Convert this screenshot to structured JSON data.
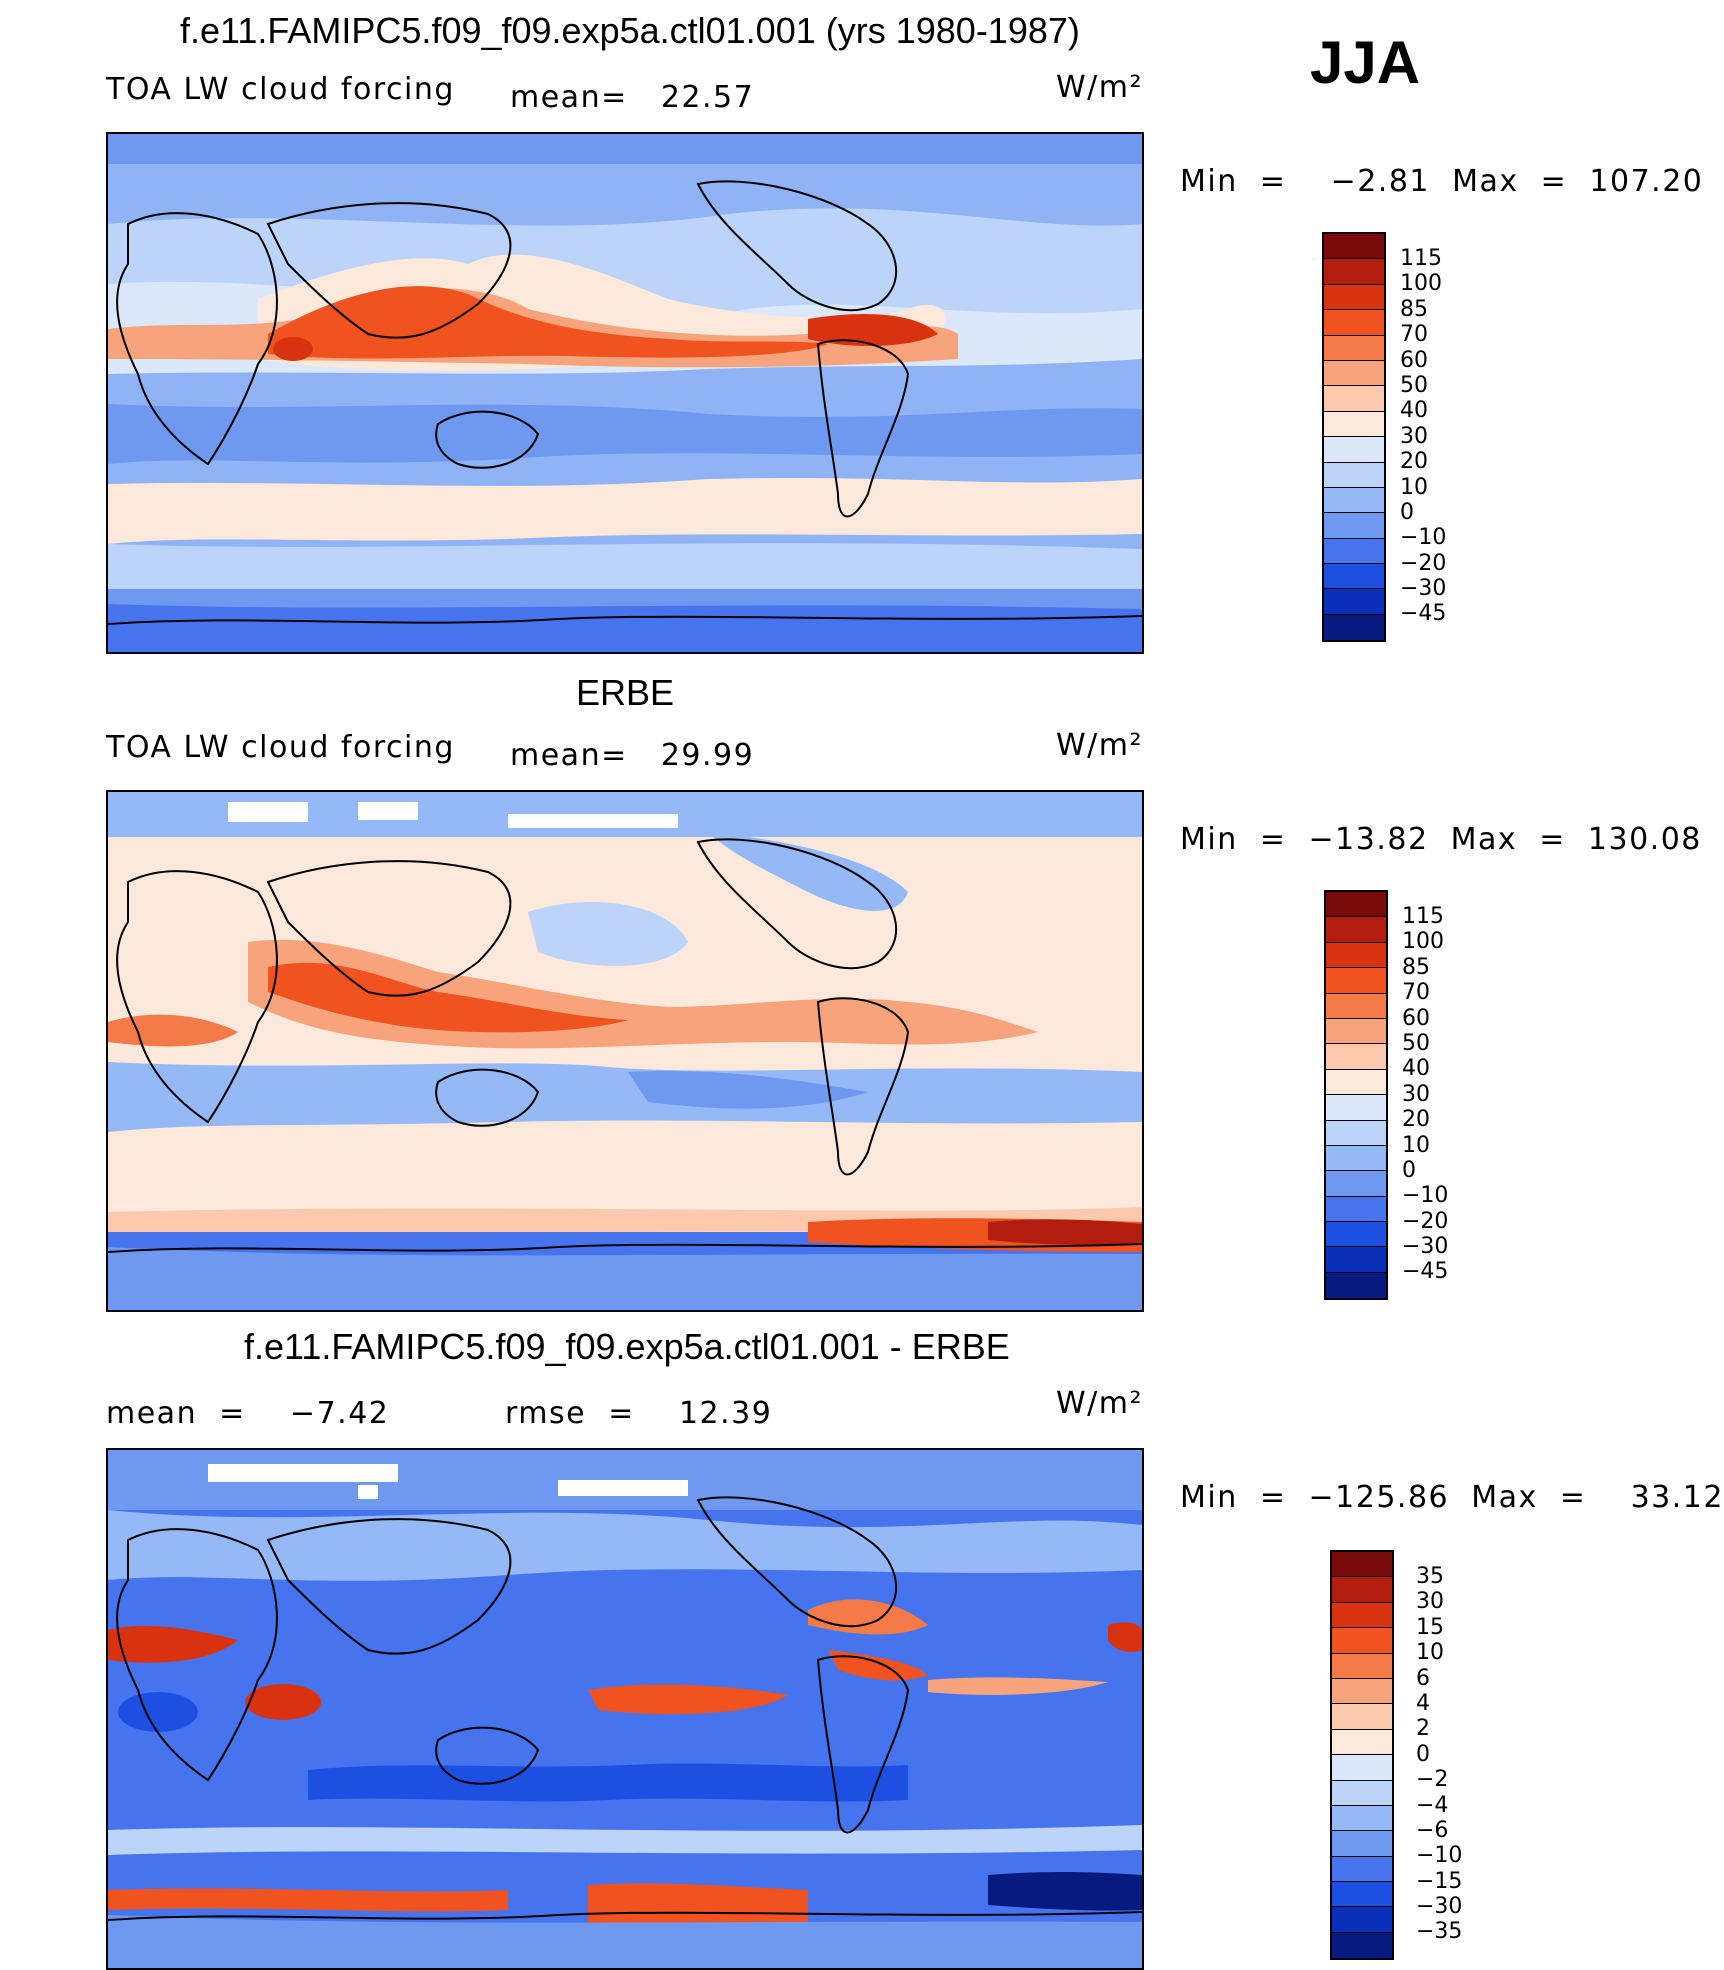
{
  "season": "JJA",
  "unit_label": "W/m²",
  "panels": [
    {
      "title": "f.e11.FAMIPC5.f09_f09.exp5a.ctl01.001 (yrs 1980-1987)",
      "left_label": "TOA LW cloud forcing",
      "stat_label": "mean=   22.57",
      "minmax": "Min  =    −2.81  Max  =  107.20",
      "colorbar": {
        "labels": [
          "115",
          "100",
          "85",
          "70",
          "60",
          "50",
          "40",
          "30",
          "20",
          "10",
          "0",
          "−10",
          "−20",
          "−30",
          "−45"
        ],
        "colors": [
          "#7a0a0a",
          "#b21d0d",
          "#d8330e",
          "#f05220",
          "#f47a48",
          "#f7a47c",
          "#fbc9ae",
          "#fde9dc",
          "#dbe8fb",
          "#bcd3fa",
          "#95b9f7",
          "#6f99f1",
          "#4574ee",
          "#1e4fe3",
          "#0a2fb8",
          "#061a80"
        ]
      }
    },
    {
      "title": "ERBE",
      "left_label": "TOA LW cloud forcing",
      "stat_label": "mean=   29.99",
      "minmax": "Min  =  −13.82  Max  =  130.08",
      "colorbar": {
        "labels": [
          "115",
          "100",
          "85",
          "70",
          "60",
          "50",
          "40",
          "30",
          "20",
          "10",
          "0",
          "−10",
          "−20",
          "−30",
          "−45"
        ],
        "colors": [
          "#7a0a0a",
          "#b21d0d",
          "#d8330e",
          "#f05220",
          "#f47a48",
          "#f7a47c",
          "#fbc9ae",
          "#fde9dc",
          "#dbe8fb",
          "#bcd3fa",
          "#95b9f7",
          "#6f99f1",
          "#4574ee",
          "#1e4fe3",
          "#0a2fb8",
          "#061a80"
        ]
      }
    },
    {
      "title": "f.e11.FAMIPC5.f09_f09.exp5a.ctl01.001 - ERBE",
      "left_label": "mean  =    −7.42",
      "stat_label": "rmse  =    12.39",
      "minmax": "Min  =  −125.86  Max  =    33.12",
      "colorbar": {
        "labels": [
          "35",
          "30",
          "15",
          "10",
          "6",
          "4",
          "2",
          "0",
          "−2",
          "−4",
          "−6",
          "−10",
          "−15",
          "−30",
          "−35"
        ],
        "colors": [
          "#7a0a0a",
          "#b21d0d",
          "#d8330e",
          "#f05220",
          "#f47a48",
          "#f7a47c",
          "#fbc9ae",
          "#fde9dc",
          "#dbe8fb",
          "#bcd3fa",
          "#95b9f7",
          "#6f99f1",
          "#4574ee",
          "#1e4fe3",
          "#0a2fb8",
          "#061a80"
        ]
      }
    }
  ]
}
